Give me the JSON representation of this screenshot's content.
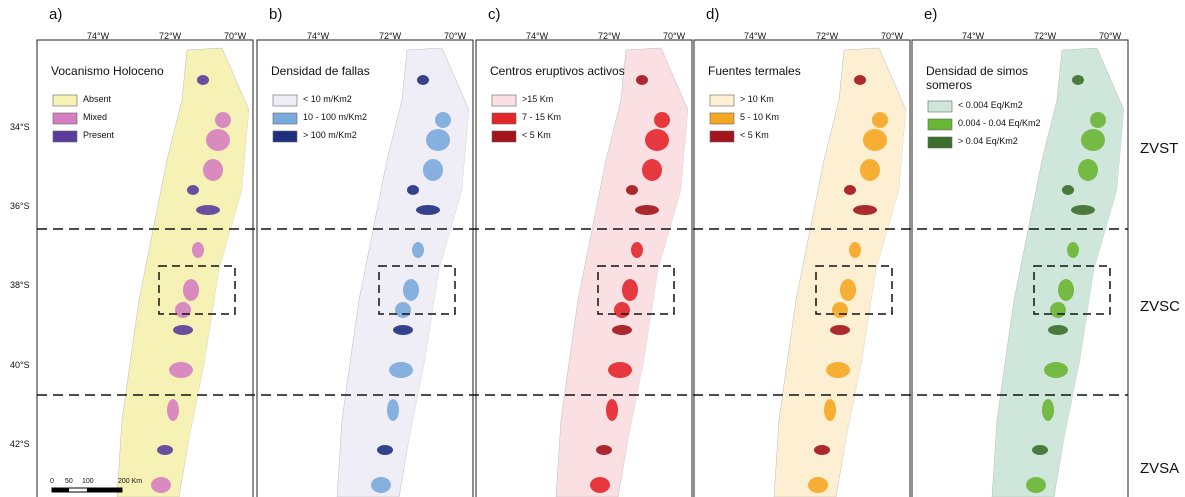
{
  "panels": [
    {
      "letter": "a)",
      "title": "Vocanismo Holoceno",
      "legend": [
        {
          "label": "Absent",
          "color": "#f6f2b6"
        },
        {
          "label": "Mixed",
          "color": "#d67fc0"
        },
        {
          "label": "Present",
          "color": "#5b3c9c"
        }
      ]
    },
    {
      "letter": "b)",
      "title": "Densidad de fallas",
      "legend": [
        {
          "label": "< 10 m/Km2",
          "color": "#efedf6"
        },
        {
          "label": "10 - 100 m/Km2",
          "color": "#7aa9dc"
        },
        {
          "label": "> 100 m/Km2",
          "color": "#1f2f80"
        }
      ]
    },
    {
      "letter": "c)",
      "title": "Centros eruptivos activos",
      "legend": [
        {
          "label": ">15 Km",
          "color": "#fbe0e3"
        },
        {
          "label": "7 - 15 Km",
          "color": "#e3262b"
        },
        {
          "label": "< 5 Km",
          "color": "#a3141b"
        }
      ]
    },
    {
      "letter": "d)",
      "title": "Fuentes termales",
      "legend": [
        {
          "label": "> 10 Km",
          "color": "#fdefd2"
        },
        {
          "label": "5 - 10 Km",
          "color": "#f5a623"
        },
        {
          "label": "< 5 Km",
          "color": "#a3141b"
        }
      ]
    },
    {
      "letter": "e)",
      "title": "Densidad de simos someros",
      "legend": [
        {
          "label": "< 0.004 Eq/Km2",
          "color": "#cfe7da"
        },
        {
          "label": "0.004 - 0.04 Eq/Km2",
          "color": "#6ab534"
        },
        {
          "label": "> 0.04 Eq/Km2",
          "color": "#3b6e2a"
        }
      ]
    }
  ],
  "longitude_ticks": [
    "74°W",
    "72°W",
    "70°W"
  ],
  "latitude_ticks": [
    "34°S",
    "36°S",
    "38°S",
    "40°S",
    "42°S"
  ],
  "zones": [
    "ZVST",
    "ZVSC",
    "ZVSA"
  ],
  "scale_bar": [
    "0",
    "50",
    "100",
    "200 Km"
  ]
}
